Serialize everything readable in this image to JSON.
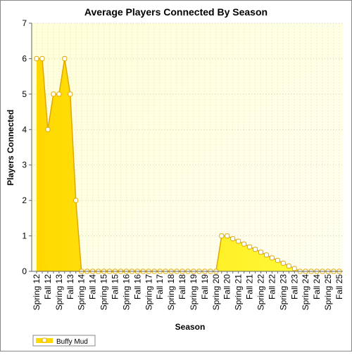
{
  "chart_data": {
    "type": "area",
    "title": "Average Players Connected By Season",
    "x_label": "Season",
    "y_label": "Players Connected",
    "categories": [
      "Spring 12",
      null,
      "Fall 12",
      null,
      "Spring 13",
      null,
      "Fall 13",
      null,
      "Spring 14",
      null,
      "Fall 14",
      null,
      "Spring 15",
      null,
      "Fall 15",
      null,
      "Spring 16",
      null,
      "Fall 16",
      null,
      "Spring 17",
      null,
      "Fall 17",
      null,
      "Spring 18",
      null,
      "Fall 18",
      null,
      "Spring 19",
      null,
      "Fall 19",
      null,
      "Spring 20",
      null,
      "Fall 20",
      null,
      "Spring 21",
      null,
      "Fall 21",
      null,
      "Spring 22",
      null,
      "Fall 22",
      null,
      "Spring 23",
      null,
      "Fall 23",
      null,
      "Spring 24",
      null,
      "Fall 24",
      null,
      "Spring 25",
      null,
      "Fall 25"
    ],
    "series": [
      {
        "name": "Buffy Mud",
        "color": "#ffd800",
        "values": [
          6,
          6,
          4,
          5,
          5,
          6,
          5,
          2,
          0,
          0,
          0,
          0,
          0,
          0,
          0,
          0,
          0,
          0,
          0,
          0,
          0,
          0,
          0,
          0,
          0,
          0,
          0,
          0,
          0,
          0,
          0,
          0,
          0,
          1,
          1,
          0.92,
          0.85,
          0.77,
          0.69,
          0.62,
          0.54,
          0.46,
          0.38,
          0.31,
          0.23,
          0.15,
          0.08,
          0,
          0,
          0,
          0,
          0,
          0,
          0,
          0
        ]
      }
    ],
    "ylim": [
      0,
      7
    ],
    "yticks": [
      0,
      1,
      2,
      3,
      4,
      5,
      6,
      7
    ],
    "grid": true
  }
}
